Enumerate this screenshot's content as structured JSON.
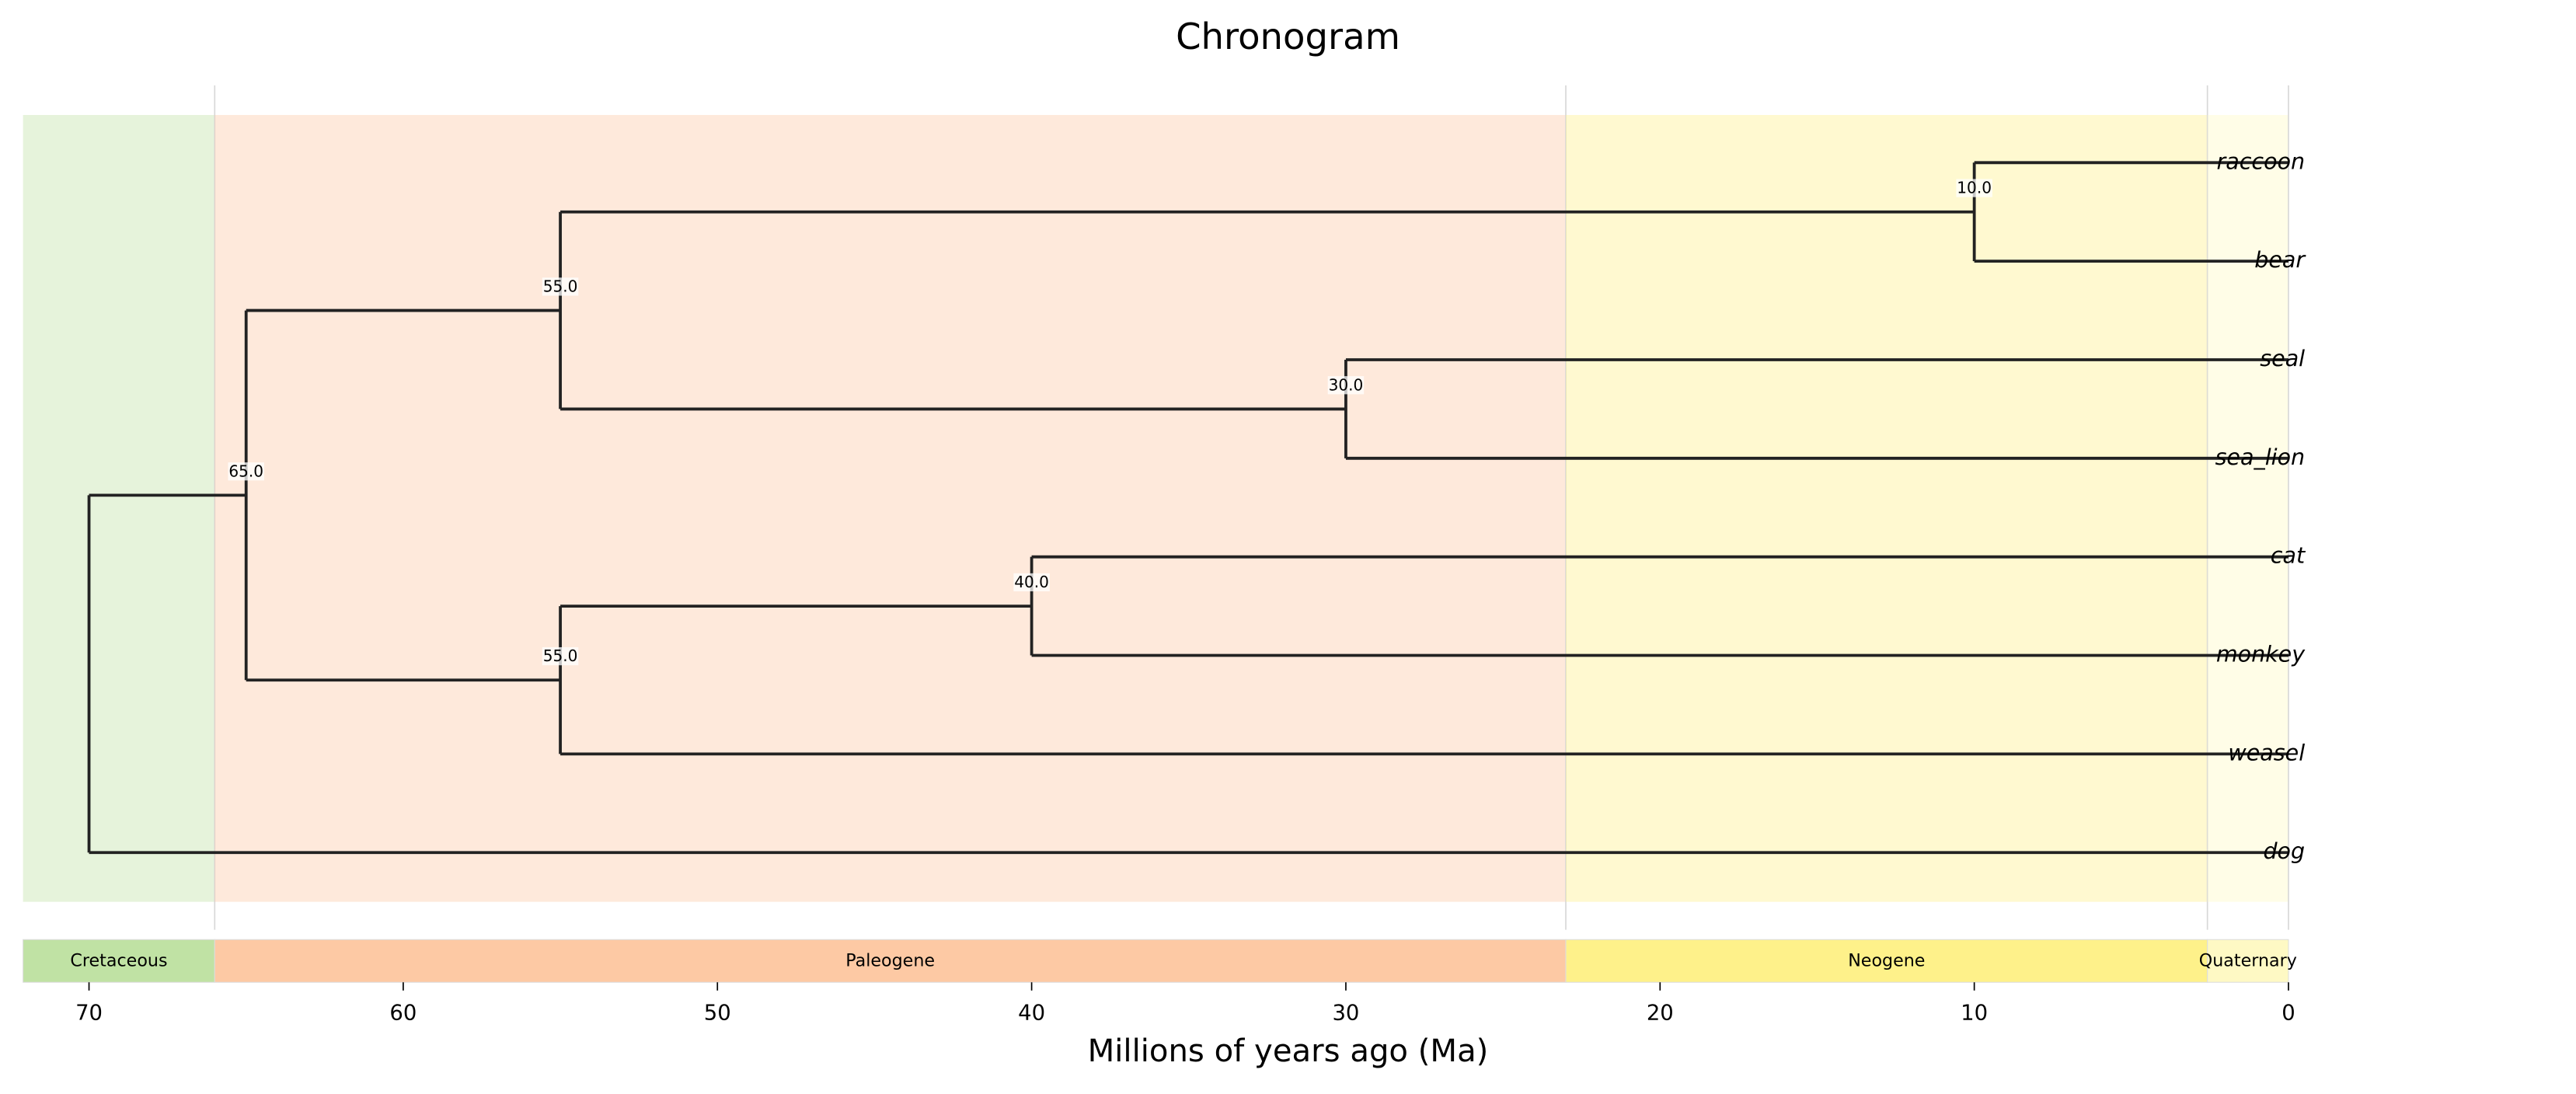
{
  "chart_data": {
    "type": "chronogram",
    "title": "Chronogram",
    "x_label": "Millions of years ago (Ma)",
    "xlim": [
      72.1,
      0
    ],
    "xticks": [
      70,
      60,
      50,
      40,
      30,
      20,
      10,
      0
    ],
    "periods": [
      {
        "name": "Cretaceous",
        "end": 66,
        "color": "#c0e2a4"
      },
      {
        "name": "Paleogene",
        "end": 23,
        "color": "#fdc9a4"
      },
      {
        "name": "Neogene",
        "end": 2.58,
        "color": "#fef18a"
      },
      {
        "name": "Quaternary",
        "end": 0,
        "color": "#fef9c4"
      }
    ],
    "line_color": "#222222",
    "tree": {
      "age": 70,
      "children": [
        {
          "age": 65,
          "label": "65.0",
          "children": [
            {
              "age": 55,
              "label": "55.0",
              "children": [
                {
                  "age": 10,
                  "label": "10.0",
                  "children": [
                    {
                      "name": "raccoon"
                    },
                    {
                      "name": "bear"
                    }
                  ]
                },
                {
                  "age": 30,
                  "label": "30.0",
                  "children": [
                    {
                      "name": "seal"
                    },
                    {
                      "name": "sea_lion"
                    }
                  ]
                }
              ]
            },
            {
              "age": 55,
              "label": "55.0",
              "children": [
                {
                  "age": 40,
                  "label": "40.0",
                  "children": [
                    {
                      "name": "cat"
                    },
                    {
                      "name": "monkey"
                    }
                  ]
                },
                {
                  "name": "weasel"
                }
              ]
            }
          ]
        },
        {
          "name": "dog"
        }
      ]
    }
  }
}
